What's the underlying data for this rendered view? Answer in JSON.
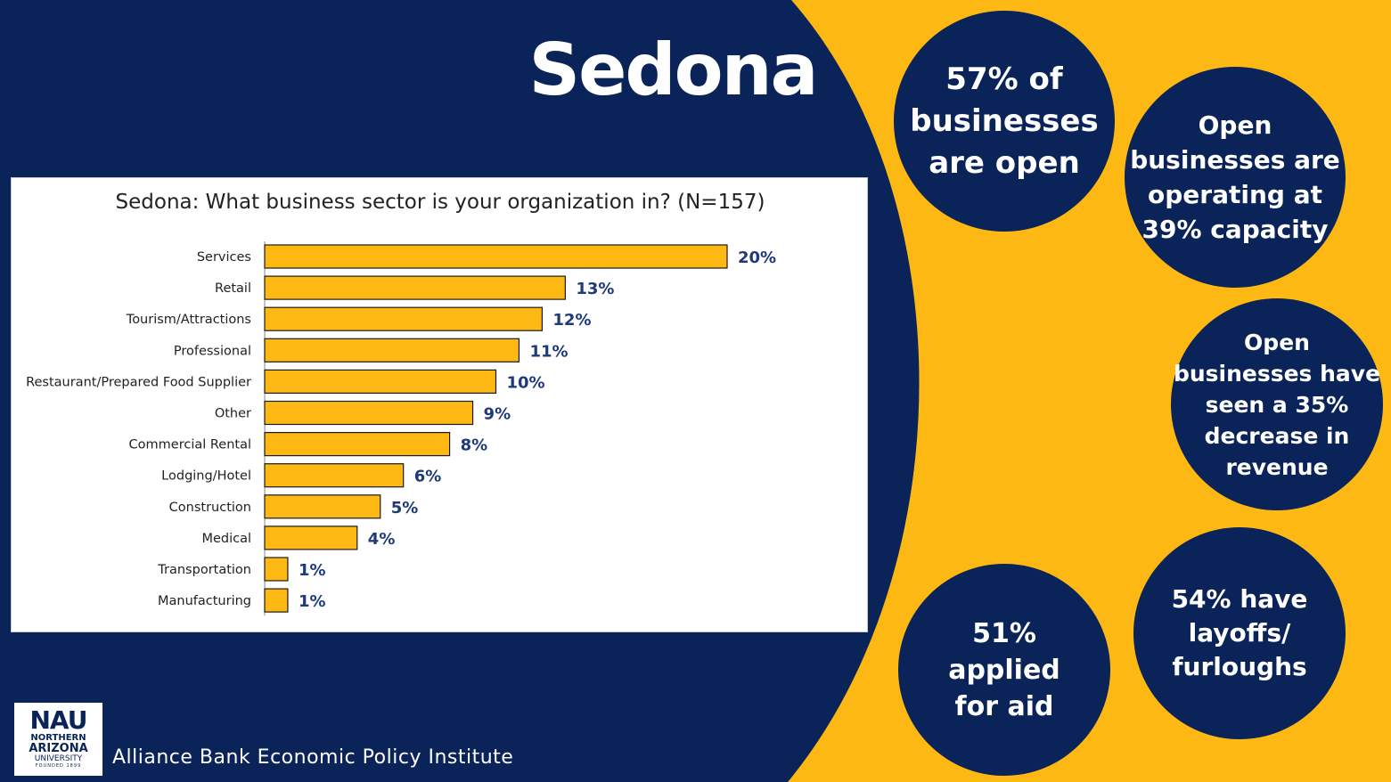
{
  "slide": {
    "title": "Sedona",
    "footer": "Alliance Bank Economic Policy Institute",
    "logo": {
      "mark": "NAU",
      "line1": "NORTHERN",
      "line2": "ARIZONA",
      "line3": "UNIVERSITY",
      "line4": "FOUNDED 1899"
    },
    "colors": {
      "navy": "#0a2359",
      "gold": "#FDB813",
      "label_blue": "#1f3a78"
    }
  },
  "stats": [
    {
      "lines": [
        "57% of",
        "businesses",
        "are open"
      ]
    },
    {
      "lines": [
        "Open",
        "businesses are",
        "operating at",
        "39% capacity"
      ]
    },
    {
      "lines": [
        "Open",
        "businesses have",
        "seen a 35%",
        "decrease in",
        "revenue"
      ]
    },
    {
      "lines": [
        "51%",
        "applied",
        "for aid"
      ]
    },
    {
      "lines": [
        "54% have",
        "layoffs/",
        "furloughs"
      ]
    }
  ],
  "chart_data": {
    "type": "bar",
    "orientation": "horizontal",
    "title": "Sedona: What business sector is your organization in? (N=157)",
    "categories": [
      "Services",
      "Retail",
      "Tourism/Attractions",
      "Professional",
      "Restaurant/Prepared Food Supplier",
      "Other",
      "Commercial Rental",
      "Lodging/Hotel",
      "Construction",
      "Medical",
      "Transportation",
      "Manufacturing"
    ],
    "values": [
      20,
      13,
      12,
      11,
      10,
      9,
      8,
      6,
      5,
      4,
      1,
      1
    ],
    "data_labels": [
      "20%",
      "13%",
      "12%",
      "11%",
      "10%",
      "9%",
      "8%",
      "6%",
      "5%",
      "4%",
      "1%",
      "1%"
    ],
    "bar_color": "#FDB813",
    "grid": false
  }
}
